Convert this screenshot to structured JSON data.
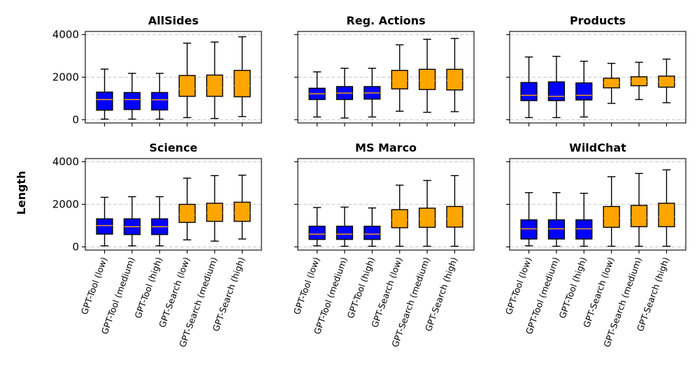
{
  "chart_data": {
    "type": "box",
    "ylabel": "Length",
    "ylim": [
      -150,
      4150
    ],
    "yticks": [
      0,
      2000,
      4000
    ],
    "grid": "horizontal dashed",
    "categories": [
      "GPT-Tool (low)",
      "GPT-Tool (medium)",
      "GPT-Tool (high)",
      "GPT-Search (low)",
      "GPT-Search (medium)",
      "GPT-Search (high)"
    ],
    "colors": [
      "#0000ff",
      "#0000ff",
      "#0000ff",
      "#ffa500",
      "#ffa500",
      "#ffa500"
    ],
    "median_color": "#ffa500",
    "panels": [
      {
        "title": "AllSides",
        "boxes": [
          {
            "min": 30,
            "q1": 450,
            "median": 950,
            "q3": 1300,
            "max": 2380
          },
          {
            "min": 30,
            "q1": 480,
            "median": 950,
            "q3": 1280,
            "max": 2180
          },
          {
            "min": 30,
            "q1": 460,
            "median": 940,
            "q3": 1280,
            "max": 2180
          },
          {
            "min": 100,
            "q1": 1100,
            "median": 1450,
            "q3": 2080,
            "max": 3600
          },
          {
            "min": 60,
            "q1": 1100,
            "median": 1500,
            "q3": 2100,
            "max": 3650
          },
          {
            "min": 150,
            "q1": 1080,
            "median": 1600,
            "q3": 2320,
            "max": 3900
          }
        ]
      },
      {
        "title": "Reg. Actions",
        "boxes": [
          {
            "min": 130,
            "q1": 950,
            "median": 1220,
            "q3": 1480,
            "max": 2250
          },
          {
            "min": 80,
            "q1": 950,
            "median": 1250,
            "q3": 1560,
            "max": 2420
          },
          {
            "min": 130,
            "q1": 970,
            "median": 1260,
            "q3": 1560,
            "max": 2420
          },
          {
            "min": 400,
            "q1": 1450,
            "median": 1850,
            "q3": 2320,
            "max": 3520
          },
          {
            "min": 350,
            "q1": 1420,
            "median": 1850,
            "q3": 2370,
            "max": 3780
          },
          {
            "min": 380,
            "q1": 1400,
            "median": 1850,
            "q3": 2370,
            "max": 3820
          }
        ]
      },
      {
        "title": "Products",
        "boxes": [
          {
            "min": 100,
            "q1": 900,
            "median": 1150,
            "q3": 1750,
            "max": 2950
          },
          {
            "min": 100,
            "q1": 900,
            "median": 1100,
            "q3": 1780,
            "max": 2980
          },
          {
            "min": 130,
            "q1": 930,
            "median": 1150,
            "q3": 1730,
            "max": 2750
          },
          {
            "min": 770,
            "q1": 1500,
            "median": 1750,
            "q3": 1950,
            "max": 2650
          },
          {
            "min": 950,
            "q1": 1600,
            "median": 1800,
            "q3": 2020,
            "max": 2700
          },
          {
            "min": 800,
            "q1": 1530,
            "median": 1780,
            "q3": 2050,
            "max": 2850
          }
        ]
      },
      {
        "title": "Science",
        "boxes": [
          {
            "min": 50,
            "q1": 600,
            "median": 1000,
            "q3": 1320,
            "max": 2330
          },
          {
            "min": 50,
            "q1": 580,
            "median": 950,
            "q3": 1320,
            "max": 2360
          },
          {
            "min": 50,
            "q1": 580,
            "median": 950,
            "q3": 1320,
            "max": 2360
          },
          {
            "min": 330,
            "q1": 1150,
            "median": 1500,
            "q3": 2000,
            "max": 3230
          },
          {
            "min": 270,
            "q1": 1200,
            "median": 1600,
            "q3": 2050,
            "max": 3350
          },
          {
            "min": 370,
            "q1": 1200,
            "median": 1600,
            "q3": 2100,
            "max": 3370
          }
        ]
      },
      {
        "title": "MS Marco",
        "boxes": [
          {
            "min": 50,
            "q1": 350,
            "median": 600,
            "q3": 970,
            "max": 1850
          },
          {
            "min": 30,
            "q1": 350,
            "median": 600,
            "q3": 970,
            "max": 1870
          },
          {
            "min": 30,
            "q1": 350,
            "median": 600,
            "q3": 970,
            "max": 1830
          },
          {
            "min": 30,
            "q1": 900,
            "median": 1270,
            "q3": 1750,
            "max": 2900
          },
          {
            "min": 30,
            "q1": 920,
            "median": 1320,
            "q3": 1820,
            "max": 3120
          },
          {
            "min": 30,
            "q1": 930,
            "median": 1320,
            "q3": 1900,
            "max": 3350
          }
        ]
      },
      {
        "title": "WildChat",
        "boxes": [
          {
            "min": 50,
            "q1": 370,
            "median": 850,
            "q3": 1270,
            "max": 2550
          },
          {
            "min": 30,
            "q1": 370,
            "median": 850,
            "q3": 1270,
            "max": 2550
          },
          {
            "min": 30,
            "q1": 370,
            "median": 850,
            "q3": 1270,
            "max": 2520
          },
          {
            "min": 30,
            "q1": 920,
            "median": 1350,
            "q3": 1900,
            "max": 3300
          },
          {
            "min": 30,
            "q1": 950,
            "median": 1380,
            "q3": 1950,
            "max": 3450
          },
          {
            "min": 30,
            "q1": 950,
            "median": 1420,
            "q3": 2050,
            "max": 3620
          }
        ]
      }
    ]
  }
}
